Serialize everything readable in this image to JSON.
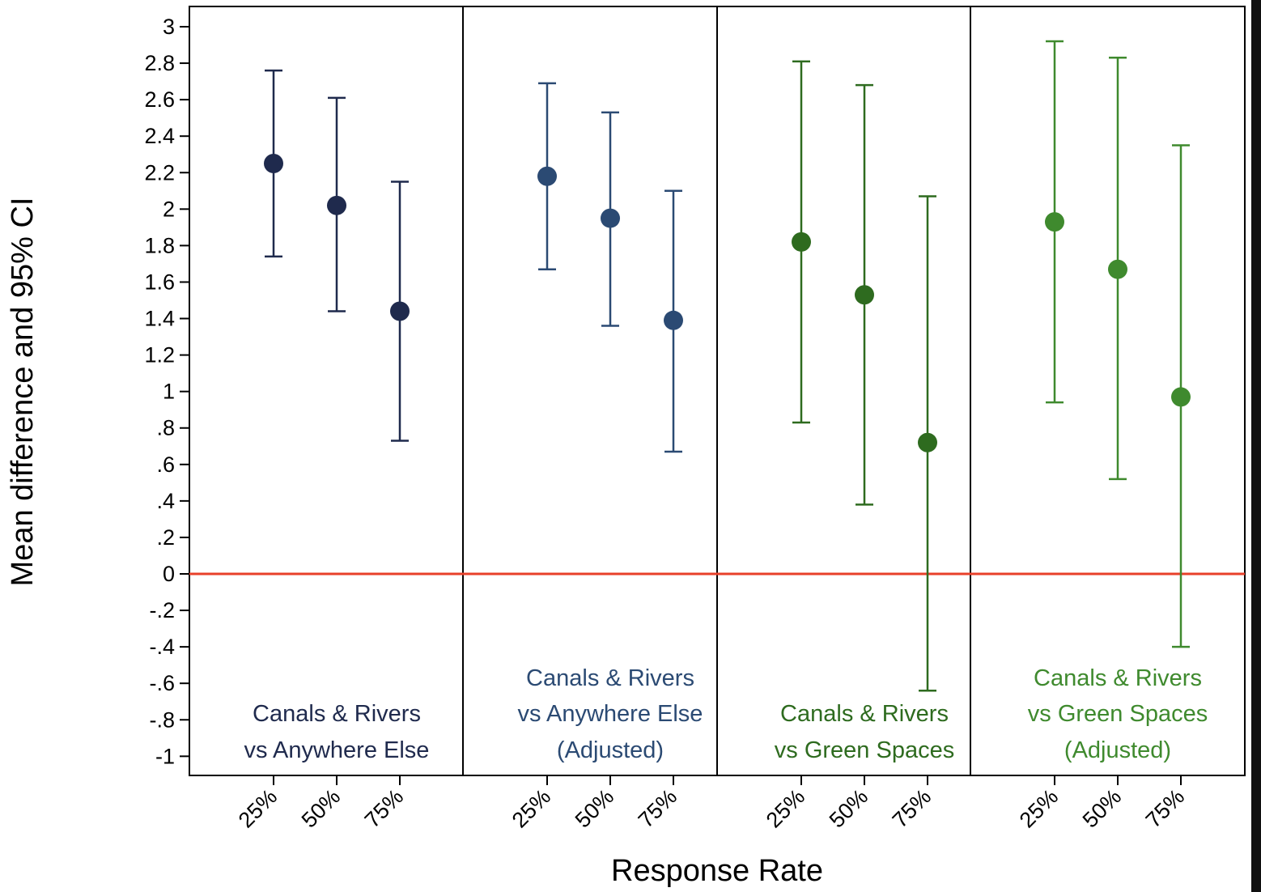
{
  "chart_data": {
    "type": "scatter",
    "xlabel": "Response Rate",
    "ylabel": "Mean difference and 95% CI",
    "ylim": [
      -1.1,
      3.1
    ],
    "y_ticks": [
      {
        "value": 3,
        "label": "3"
      },
      {
        "value": 2.8,
        "label": "2.8"
      },
      {
        "value": 2.6,
        "label": "2.6"
      },
      {
        "value": 2.4,
        "label": "2.4"
      },
      {
        "value": 2.2,
        "label": "2.2"
      },
      {
        "value": 2,
        "label": "2"
      },
      {
        "value": 1.8,
        "label": "1.8"
      },
      {
        "value": 1.6,
        "label": "1.6"
      },
      {
        "value": 1.4,
        "label": "1.4"
      },
      {
        "value": 1.2,
        "label": "1.2"
      },
      {
        "value": 1,
        "label": "1"
      },
      {
        "value": 0.8,
        "label": ".8"
      },
      {
        "value": 0.6,
        "label": ".6"
      },
      {
        "value": 0.4,
        "label": ".4"
      },
      {
        "value": 0.2,
        "label": ".2"
      },
      {
        "value": 0,
        "label": "0"
      },
      {
        "value": -0.2,
        "label": "-.2"
      },
      {
        "value": -0.4,
        "label": "-.4"
      },
      {
        "value": -0.6,
        "label": "-.6"
      },
      {
        "value": -0.8,
        "label": "-.8"
      },
      {
        "value": -1,
        "label": "-1"
      }
    ],
    "reference_line": {
      "y": 0,
      "color": "#e8402a"
    },
    "grid": false,
    "panels": [
      {
        "label_lines": [
          "Canals & Rivers",
          "vs Anywhere Else"
        ],
        "color": "#1f2a4d",
        "points": [
          {
            "x": "25%",
            "mean": 2.25,
            "lower": 1.74,
            "upper": 2.76
          },
          {
            "x": "50%",
            "mean": 2.02,
            "lower": 1.44,
            "upper": 2.61
          },
          {
            "x": "75%",
            "mean": 1.44,
            "lower": 0.73,
            "upper": 2.15
          }
        ]
      },
      {
        "label_lines": [
          "Canals & Rivers",
          "vs Anywhere Else",
          "(Adjusted)"
        ],
        "color": "#2b4a73",
        "points": [
          {
            "x": "25%",
            "mean": 2.18,
            "lower": 1.67,
            "upper": 2.69
          },
          {
            "x": "50%",
            "mean": 1.95,
            "lower": 1.36,
            "upper": 2.53
          },
          {
            "x": "75%",
            "mean": 1.39,
            "lower": 0.67,
            "upper": 2.1
          }
        ]
      },
      {
        "label_lines": [
          "Canals & Rivers",
          "vs Green Spaces"
        ],
        "color": "#2e6b1f",
        "points": [
          {
            "x": "25%",
            "mean": 1.82,
            "lower": 0.83,
            "upper": 2.81
          },
          {
            "x": "50%",
            "mean": 1.53,
            "lower": 0.38,
            "upper": 2.68
          },
          {
            "x": "75%",
            "mean": 0.72,
            "lower": -0.64,
            "upper": 2.07
          }
        ]
      },
      {
        "label_lines": [
          "Canals & Rivers",
          "vs Green Spaces",
          "(Adjusted)"
        ],
        "color": "#3f8a2e",
        "points": [
          {
            "x": "25%",
            "mean": 1.93,
            "lower": 0.94,
            "upper": 2.92
          },
          {
            "x": "50%",
            "mean": 1.67,
            "lower": 0.52,
            "upper": 2.83
          },
          {
            "x": "75%",
            "mean": 0.97,
            "lower": -0.4,
            "upper": 2.35
          }
        ]
      }
    ]
  }
}
